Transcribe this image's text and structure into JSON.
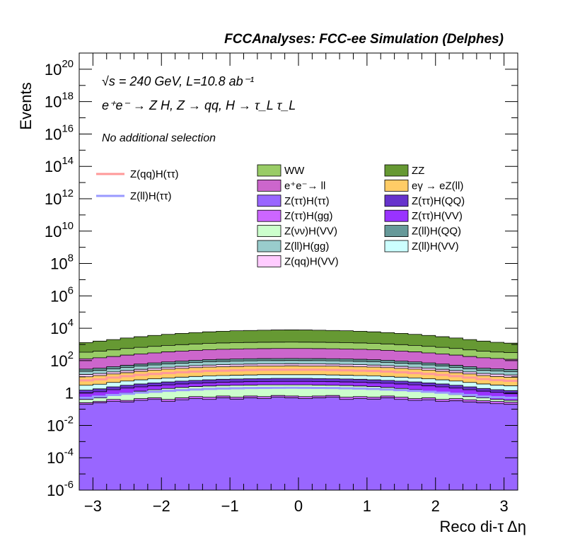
{
  "chart_data": {
    "type": "stacked-histogram",
    "title": "FCCAnalyses: FCC-ee Simulation (Delphes)",
    "annotations": {
      "energy_lumi": "√s = 240 GeV, L=10.8 ab⁻¹",
      "process": "e⁺e⁻ → Z H, Z → qq, H → τ_L τ_L",
      "selection": "No additional selection"
    },
    "xlabel": "Reco di-τ Δη",
    "ylabel": "Events",
    "xlim": [
      -3.2,
      3.2
    ],
    "ylim": [
      1e-06,
      1e+21
    ],
    "yscale": "log",
    "x_ticks": [
      -3,
      -2,
      -1,
      0,
      1,
      2,
      3
    ],
    "x_tick_labels": [
      "−3",
      "−2",
      "−1",
      "0",
      "1",
      "2",
      "3"
    ],
    "y_ticks": [
      {
        "value": 1e-06,
        "base": "10",
        "exp": "-6"
      },
      {
        "value": 0.0001,
        "base": "10",
        "exp": "-4"
      },
      {
        "value": 0.01,
        "base": "10",
        "exp": "-2"
      },
      {
        "value": 1,
        "base": "1",
        "exp": ""
      },
      {
        "value": 100.0,
        "base": "10",
        "exp": "2"
      },
      {
        "value": 10000.0,
        "base": "10",
        "exp": "4"
      },
      {
        "value": 1000000.0,
        "base": "10",
        "exp": "6"
      },
      {
        "value": 100000000.0,
        "base": "10",
        "exp": "8"
      },
      {
        "value": 10000000000.0,
        "base": "10",
        "exp": "10"
      },
      {
        "value": 1000000000000.0,
        "base": "10",
        "exp": "12"
      },
      {
        "value": 100000000000000.0,
        "base": "10",
        "exp": "14"
      },
      {
        "value": 1e+16,
        "base": "10",
        "exp": "16"
      },
      {
        "value": 1e+18,
        "base": "10",
        "exp": "18"
      },
      {
        "value": 1e+20,
        "base": "10",
        "exp": "20"
      }
    ],
    "bins": {
      "start": -3.2,
      "end": 3.2,
      "count": 32
    },
    "stack_cumulative_totals": [
      {
        "name": "Z(ττ)H(ττ)",
        "color": "#9966ff",
        "values": [
          0.2,
          0.25,
          0.3,
          0.28,
          0.35,
          0.4,
          0.3,
          0.38,
          0.45,
          0.4,
          0.5,
          0.42,
          0.5,
          0.45,
          0.55,
          0.5,
          0.45,
          0.5,
          0.55,
          0.4,
          0.45,
          0.42,
          0.5,
          0.4,
          0.35,
          0.38,
          0.3,
          0.33,
          0.28,
          0.25,
          0.22,
          0.2
        ]
      },
      {
        "name": "Z(ττ)H(gg)",
        "color": "#cc66ff",
        "values": [
          0.25,
          0.3,
          0.4,
          0.35,
          0.45,
          0.5,
          0.4,
          0.5,
          0.6,
          0.55,
          0.65,
          0.55,
          0.65,
          0.6,
          0.7,
          0.65,
          0.6,
          0.65,
          0.7,
          0.55,
          0.6,
          0.55,
          0.65,
          0.55,
          0.45,
          0.5,
          0.4,
          0.45,
          0.38,
          0.33,
          0.3,
          0.27
        ]
      },
      {
        "name": "Z(νν)H(VV)",
        "color": "#ccffcc",
        "values": [
          0.4,
          0.5,
          0.8,
          1.0,
          1.3,
          1.6,
          1.9,
          2.2,
          2.5,
          2.7,
          2.9,
          3.0,
          3.1,
          3.2,
          3.2,
          3.2,
          3.2,
          3.1,
          3.0,
          2.9,
          2.7,
          2.5,
          2.2,
          1.9,
          1.6,
          1.3,
          1.1,
          0.8,
          0.6,
          0.5,
          0.4,
          0.35
        ]
      },
      {
        "name": "Z(ττ)H(VV)",
        "color": "#9933ff",
        "values": [
          1.0,
          1.2,
          1.6,
          2.0,
          2.4,
          2.8,
          3.2,
          3.6,
          4.0,
          4.3,
          4.6,
          4.8,
          5.0,
          5.1,
          5.2,
          5.2,
          5.2,
          5.1,
          5.0,
          4.8,
          4.6,
          4.3,
          4.0,
          3.6,
          3.2,
          2.8,
          2.4,
          2.0,
          1.6,
          1.3,
          1.1,
          0.9
        ]
      },
      {
        "name": "Z(ττ)H(QQ)",
        "color": "#6633cc",
        "values": [
          1.5,
          1.8,
          2.4,
          3.0,
          3.6,
          4.2,
          4.8,
          5.4,
          6.0,
          6.5,
          7.0,
          7.3,
          7.6,
          7.8,
          8.0,
          8.0,
          8.0,
          7.8,
          7.6,
          7.3,
          7.0,
          6.5,
          6.0,
          5.4,
          4.8,
          4.2,
          3.6,
          3.0,
          2.4,
          1.9,
          1.6,
          1.4
        ]
      },
      {
        "name": "Z(ll)H(VV)",
        "color": "#ccffff",
        "values": [
          3,
          3.5,
          4.5,
          5.5,
          6.5,
          7.5,
          8.5,
          9.5,
          10.5,
          11.5,
          12,
          12.5,
          13,
          13.5,
          13.5,
          13.5,
          13.5,
          13.5,
          13,
          12.5,
          12,
          11.5,
          10.5,
          9.5,
          8.5,
          7.5,
          6.5,
          5.5,
          4.5,
          3.6,
          3.1,
          2.8
        ]
      },
      {
        "name": "Z(qq)H(ττ)",
        "color": "#ffcc66",
        "values": [
          6,
          7,
          9,
          11,
          13,
          15,
          17,
          19,
          21,
          23,
          24,
          25,
          26,
          27,
          27,
          27,
          27,
          27,
          26,
          25,
          24,
          23,
          21,
          19,
          17,
          15,
          13,
          11,
          9,
          7.2,
          6.2,
          5.6
        ]
      },
      {
        "name": "eγ → eZ(ll)",
        "color": "#ffcc66",
        "values": [
          10,
          12,
          15,
          18,
          22,
          26,
          30,
          33,
          37,
          40,
          42,
          44,
          46,
          47,
          47,
          48,
          47,
          47,
          46,
          44,
          42,
          40,
          37,
          33,
          30,
          26,
          22,
          18,
          15,
          12,
          10.5,
          9.5
        ]
      },
      {
        "name": "Z(qq)H(VV)",
        "color": "#ffccff",
        "values": [
          14,
          16,
          20,
          24,
          29,
          34,
          39,
          44,
          49,
          53,
          56,
          59,
          61,
          63,
          63,
          64,
          63,
          63,
          61,
          59,
          56,
          53,
          49,
          44,
          39,
          34,
          29,
          24,
          20,
          16,
          14.5,
          13
        ]
      },
      {
        "name": "Z(ll)H(gg)",
        "color": "#99cccc",
        "values": [
          22,
          25,
          31,
          38,
          46,
          54,
          62,
          70,
          78,
          85,
          90,
          95,
          98,
          100,
          101,
          102,
          101,
          100,
          98,
          95,
          90,
          85,
          78,
          70,
          62,
          54,
          46,
          38,
          31,
          25,
          23,
          21
        ]
      },
      {
        "name": "Z(ll)H(QQ)",
        "color": "#669999",
        "values": [
          30,
          34,
          42,
          51,
          61,
          72,
          83,
          93,
          104,
          113,
          120,
          126,
          130,
          133,
          134,
          135,
          134,
          133,
          130,
          126,
          120,
          113,
          104,
          93,
          83,
          72,
          61,
          51,
          42,
          34,
          31,
          28
        ]
      },
      {
        "name": "e⁺e⁻→ ll",
        "color": "#cc66cc",
        "values": [
          130,
          150,
          180,
          220,
          260,
          300,
          350,
          390,
          430,
          470,
          500,
          520,
          540,
          550,
          560,
          560,
          560,
          550,
          540,
          520,
          500,
          470,
          430,
          390,
          350,
          300,
          260,
          220,
          180,
          150,
          135,
          120
        ]
      },
      {
        "name": "WW",
        "color": "#99cc66",
        "values": [
          330,
          380,
          460,
          560,
          660,
          760,
          870,
          970,
          1070,
          1160,
          1230,
          1290,
          1330,
          1360,
          1380,
          1390,
          1380,
          1360,
          1330,
          1290,
          1230,
          1160,
          1070,
          970,
          870,
          760,
          660,
          560,
          460,
          380,
          340,
          310
        ]
      },
      {
        "name": "ZZ",
        "color": "#669933",
        "values": [
          1300,
          1600,
          2000,
          2500,
          3000,
          3600,
          4200,
          4800,
          5400,
          6000,
          6500,
          7000,
          7300,
          7600,
          7800,
          7900,
          7800,
          7600,
          7300,
          7000,
          6500,
          6000,
          5400,
          4800,
          4200,
          3600,
          3000,
          2500,
          2000,
          1600,
          1350,
          1200
        ]
      }
    ],
    "signal_lines": [
      {
        "name": "Z(qq)H(ττ)",
        "color": "#ff9999",
        "values": [
          6,
          7,
          9,
          11,
          13,
          15,
          17,
          19,
          21,
          23,
          24,
          25,
          26,
          27,
          27,
          27,
          27,
          27,
          26,
          25,
          24,
          23,
          21,
          19,
          17,
          15,
          13,
          11,
          9,
          7.2,
          6.2,
          5.6
        ]
      },
      {
        "name": "Z(ll)H(ττ)",
        "color": "#9999ff",
        "values": [
          0.5,
          0.6,
          0.75,
          0.9,
          1.05,
          1.2,
          1.35,
          1.5,
          1.65,
          1.78,
          1.88,
          1.96,
          2.02,
          2.06,
          2.08,
          2.1,
          2.08,
          2.06,
          2.02,
          1.96,
          1.88,
          1.78,
          1.65,
          1.5,
          1.35,
          1.2,
          1.05,
          0.9,
          0.75,
          0.6,
          0.55,
          0.5
        ]
      }
    ],
    "legend": {
      "signals": [
        {
          "label": "Z(qq)H(ττ)",
          "color": "#ff9999"
        },
        {
          "label": "Z(ll)H(ττ)",
          "color": "#9999ff"
        }
      ],
      "backgrounds_col1": [
        {
          "label": "WW",
          "color": "#99cc66"
        },
        {
          "label": "e⁺e⁻→ ll",
          "color": "#cc66cc"
        },
        {
          "label": "Z(ττ)H(ττ)",
          "color": "#9966ff"
        },
        {
          "label": "Z(ττ)H(gg)",
          "color": "#cc66ff"
        },
        {
          "label": "Z(νν)H(VV)",
          "color": "#ccffcc"
        },
        {
          "label": "Z(ll)H(gg)",
          "color": "#99cccc"
        },
        {
          "label": "Z(qq)H(VV)",
          "color": "#ffccff"
        }
      ],
      "backgrounds_col2": [
        {
          "label": "ZZ",
          "color": "#669933"
        },
        {
          "label": "eγ → eZ(ll)",
          "color": "#ffcc66"
        },
        {
          "label": "Z(ττ)H(QQ)",
          "color": "#6633cc"
        },
        {
          "label": "Z(ττ)H(VV)",
          "color": "#9933ff"
        },
        {
          "label": "Z(ll)H(QQ)",
          "color": "#669999"
        },
        {
          "label": "Z(ll)H(VV)",
          "color": "#ccffff"
        }
      ]
    },
    "grid": false,
    "legend_position": "top-right"
  }
}
